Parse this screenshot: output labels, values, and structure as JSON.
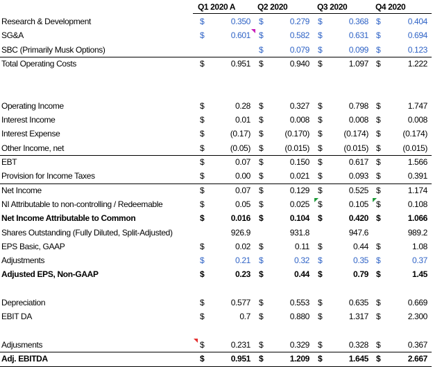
{
  "headers": [
    "Q1 2020 A",
    "Q2 2020",
    "Q3 2020",
    "Q4 2020"
  ],
  "rows": [
    {
      "label": "Research & Development",
      "bold": false,
      "blue": true,
      "cur": [
        "$",
        "$",
        "$",
        "$"
      ],
      "vals": [
        "0.350",
        "0.279",
        "0.368",
        "0.404"
      ]
    },
    {
      "label": "SG&A",
      "bold": false,
      "blue": true,
      "cur": [
        "$",
        "$",
        "$",
        "$"
      ],
      "vals": [
        "0.601",
        "0.582",
        "0.631",
        "0.694"
      ]
    },
    {
      "label": "SBC (Primarily Musk Options)",
      "bold": false,
      "blue": true,
      "cur": [
        "",
        "$",
        "$",
        "$"
      ],
      "vals": [
        "",
        "0.079",
        "0.099",
        "0.123"
      ]
    },
    {
      "label": "Total Operating Costs",
      "bold": false,
      "blue": false,
      "cur": [
        "$",
        "$",
        "$",
        "$"
      ],
      "vals": [
        "0.951",
        "0.940",
        "1.097",
        "1.222"
      ]
    },
    {
      "label": "",
      "bold": false,
      "blue": false,
      "cur": [
        "",
        "",
        "",
        ""
      ],
      "vals": [
        "",
        "",
        "",
        ""
      ]
    },
    {
      "label": "",
      "bold": false,
      "blue": false,
      "cur": [
        "",
        "",
        "",
        ""
      ],
      "vals": [
        "",
        "",
        "",
        ""
      ]
    },
    {
      "label": "Operating Income",
      "bold": false,
      "blue": false,
      "cur": [
        "$",
        "$",
        "$",
        "$"
      ],
      "vals": [
        "0.28",
        "0.327",
        "0.798",
        "1.747"
      ]
    },
    {
      "label": "Interest Income",
      "bold": false,
      "blue": false,
      "cur": [
        "$",
        "$",
        "$",
        "$"
      ],
      "vals": [
        "0.01",
        "0.008",
        "0.008",
        "0.008"
      ]
    },
    {
      "label": "Interest Expense",
      "bold": false,
      "blue": false,
      "cur": [
        "$",
        "$",
        "$",
        "$"
      ],
      "vals": [
        "(0.17)",
        "(0.170)",
        "(0.174)",
        "(0.174)"
      ]
    },
    {
      "label": "Other Income, net",
      "bold": false,
      "blue": false,
      "cur": [
        "$",
        "$",
        "$",
        "$"
      ],
      "vals": [
        "(0.05)",
        "(0.015)",
        "(0.015)",
        "(0.015)"
      ]
    },
    {
      "label": "EBT",
      "bold": false,
      "blue": false,
      "cur": [
        "$",
        "$",
        "$",
        "$"
      ],
      "vals": [
        "0.07",
        "0.150",
        "0.617",
        "1.566"
      ]
    },
    {
      "label": "Provision for Income Taxes",
      "bold": false,
      "blue": false,
      "cur": [
        "$",
        "$",
        "$",
        "$"
      ],
      "vals": [
        "0.00",
        "0.021",
        "0.093",
        "0.391"
      ]
    },
    {
      "label": "Net Income",
      "bold": false,
      "blue": false,
      "cur": [
        "$",
        "$",
        "$",
        "$"
      ],
      "vals": [
        "0.07",
        "0.129",
        "0.525",
        "1.174"
      ]
    },
    {
      "label": "NI Attributable to non-controlling / Redeemable",
      "bold": false,
      "blue": false,
      "cur": [
        "$",
        "$",
        "$",
        "$"
      ],
      "vals": [
        "0.05",
        "0.025",
        "0.105",
        "0.108"
      ]
    },
    {
      "label": "Net Income Attributable to Common",
      "bold": true,
      "blue": false,
      "cur": [
        "$",
        "$",
        "$",
        "$"
      ],
      "vals": [
        "0.016",
        "0.104",
        "0.420",
        "1.066"
      ]
    },
    {
      "label": "Shares Outstanding (Fully Diluted, Split-Adjusted)",
      "bold": false,
      "blue": false,
      "cur": [
        "",
        "",
        "",
        ""
      ],
      "vals": [
        "926.9",
        "931.8",
        "947.6",
        "989.2"
      ]
    },
    {
      "label": "EPS Basic, GAAP",
      "bold": false,
      "blue": false,
      "cur": [
        "$",
        "$",
        "$",
        "$"
      ],
      "vals": [
        "0.02",
        "0.11",
        "0.44",
        "1.08"
      ]
    },
    {
      "label": "Adjustments",
      "bold": false,
      "blue": true,
      "cur": [
        "$",
        "$",
        "$",
        "$"
      ],
      "vals": [
        "0.21",
        "0.32",
        "0.35",
        "0.37"
      ]
    },
    {
      "label": "Adjusted EPS, Non-GAAP",
      "bold": true,
      "blue": false,
      "cur": [
        "$",
        "$",
        "$",
        "$"
      ],
      "vals": [
        "0.23",
        "0.44",
        "0.79",
        "1.45"
      ]
    },
    {
      "label": "",
      "bold": false,
      "blue": false,
      "cur": [
        "",
        "",
        "",
        ""
      ],
      "vals": [
        "",
        "",
        "",
        ""
      ]
    },
    {
      "label": "Depreciation",
      "bold": false,
      "blue": false,
      "cur": [
        "$",
        "$",
        "$",
        "$"
      ],
      "vals": [
        "0.577",
        "0.553",
        "0.635",
        "0.669"
      ]
    },
    {
      "label": "EBIT DA",
      "bold": false,
      "blue": false,
      "cur": [
        "$",
        "$",
        "$",
        "$"
      ],
      "vals": [
        "0.7",
        "0.880",
        "1.317",
        "2.300"
      ]
    },
    {
      "label": "",
      "bold": false,
      "blue": false,
      "cur": [
        "",
        "",
        "",
        ""
      ],
      "vals": [
        "",
        "",
        "",
        ""
      ]
    },
    {
      "label": "Adjusments",
      "bold": false,
      "blue": false,
      "cur": [
        "$",
        "$",
        "$",
        "$"
      ],
      "vals": [
        "0.231",
        "0.329",
        "0.328",
        "0.367"
      ]
    },
    {
      "label": "Adj. EBITDA",
      "bold": true,
      "blue": false,
      "cur": [
        "$",
        "$",
        "$",
        "$"
      ],
      "vals": [
        "0.951",
        "1.209",
        "1.645",
        "2.667"
      ]
    }
  ],
  "colors": {
    "input_blue": "#2f63c6",
    "note_red": "#e53030",
    "note_pink": "#c81fb9",
    "note_green": "#1f9b3a"
  }
}
